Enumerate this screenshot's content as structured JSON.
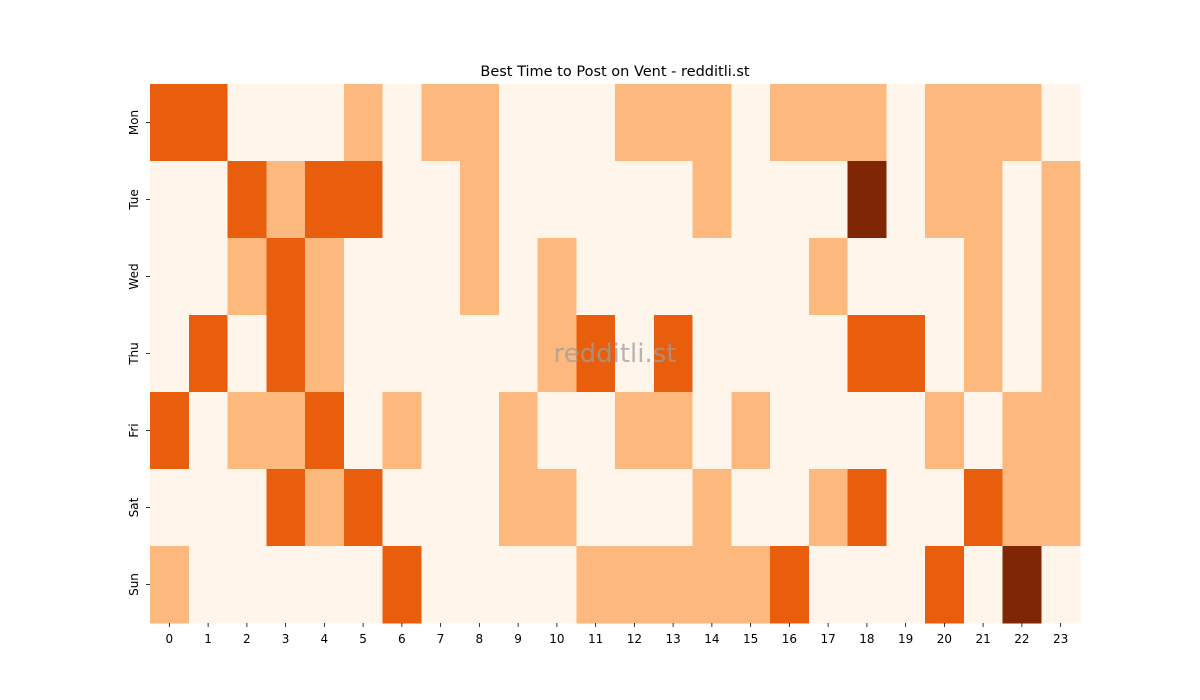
{
  "chart_data": {
    "type": "heatmap",
    "title": "Best Time to Post on Vent - redditli.st",
    "watermark": "redditli.st",
    "xlabel": "",
    "ylabel": "",
    "x_categories": [
      "0",
      "1",
      "2",
      "3",
      "4",
      "5",
      "6",
      "7",
      "8",
      "9",
      "10",
      "11",
      "12",
      "13",
      "14",
      "15",
      "16",
      "17",
      "18",
      "19",
      "20",
      "21",
      "22",
      "23"
    ],
    "y_categories": [
      "Mon",
      "Tue",
      "Wed",
      "Thu",
      "Fri",
      "Sat",
      "Sun"
    ],
    "levels": [
      0,
      1,
      2,
      3
    ],
    "colorscale": [
      "#fff5eb",
      "#fdb97d",
      "#e95e0d",
      "#7f2704"
    ],
    "values": [
      [
        2,
        2,
        0,
        0,
        0,
        1,
        0,
        1,
        1,
        0,
        0,
        0,
        1,
        1,
        1,
        0,
        1,
        1,
        1,
        0,
        1,
        1,
        1,
        0
      ],
      [
        0,
        0,
        2,
        1,
        2,
        2,
        0,
        0,
        1,
        0,
        0,
        0,
        0,
        0,
        1,
        0,
        0,
        0,
        3,
        0,
        1,
        1,
        0,
        1
      ],
      [
        0,
        0,
        1,
        2,
        1,
        0,
        0,
        0,
        1,
        0,
        1,
        0,
        0,
        0,
        0,
        0,
        0,
        1,
        0,
        0,
        0,
        1,
        0,
        1
      ],
      [
        0,
        2,
        0,
        2,
        1,
        0,
        0,
        0,
        0,
        0,
        1,
        2,
        0,
        2,
        0,
        0,
        0,
        0,
        2,
        2,
        0,
        1,
        0,
        1
      ],
      [
        2,
        0,
        1,
        1,
        2,
        0,
        1,
        0,
        0,
        1,
        0,
        0,
        1,
        1,
        0,
        1,
        0,
        0,
        0,
        0,
        1,
        0,
        1,
        1
      ],
      [
        0,
        0,
        0,
        2,
        1,
        2,
        0,
        0,
        0,
        1,
        1,
        0,
        0,
        0,
        1,
        0,
        0,
        1,
        2,
        0,
        0,
        2,
        1,
        1
      ],
      [
        1,
        0,
        0,
        0,
        0,
        0,
        2,
        0,
        0,
        0,
        0,
        1,
        1,
        1,
        1,
        1,
        2,
        0,
        0,
        0,
        2,
        0,
        3,
        0
      ]
    ]
  }
}
